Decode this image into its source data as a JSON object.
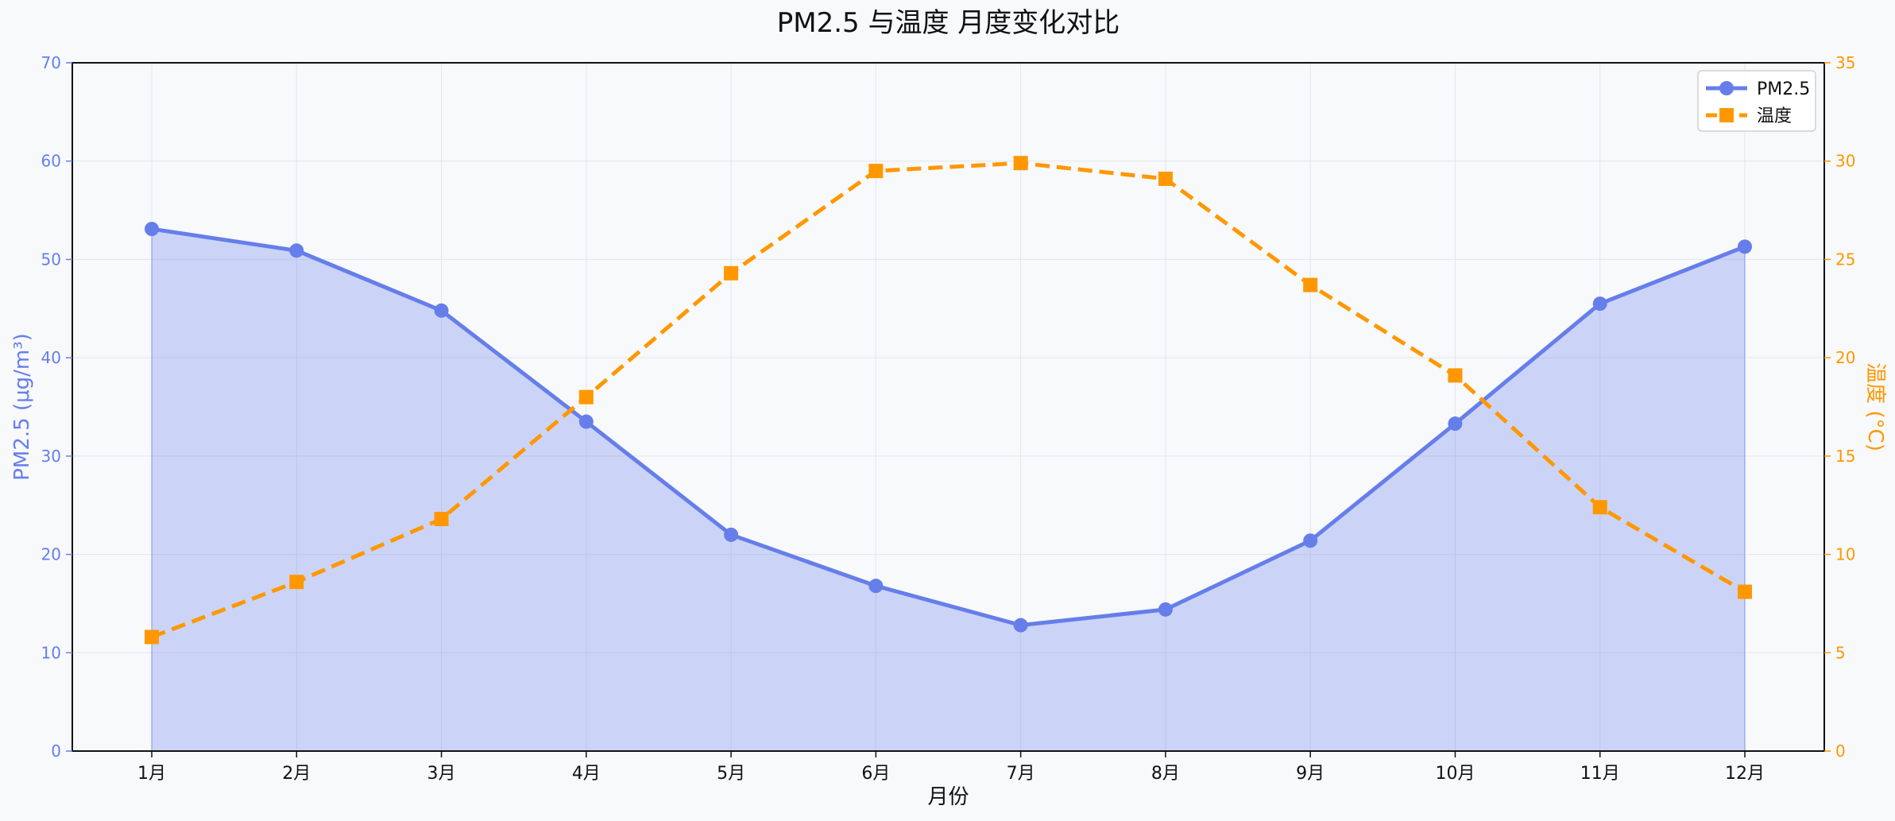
{
  "chart_data": {
    "type": "line",
    "title": "PM2.5 与温度 月度变化对比",
    "xlabel": "月份",
    "ylabel_left": "PM2.5 (μg/m³)",
    "ylabel_right": "温度 (°C)",
    "categories": [
      "1月",
      "2月",
      "3月",
      "4月",
      "5月",
      "6月",
      "7月",
      "8月",
      "9月",
      "10月",
      "11月",
      "12月"
    ],
    "ylim_left": [
      0,
      70
    ],
    "yticks_left": [
      0,
      10,
      20,
      30,
      40,
      50,
      60,
      70
    ],
    "ylim_right": [
      0,
      35
    ],
    "yticks_right": [
      0,
      5,
      10,
      15,
      20,
      25,
      30,
      35
    ],
    "grid": true,
    "legend_position": "top-right",
    "series": [
      {
        "name": "PM2.5",
        "axis": "left",
        "style": "solid-area",
        "marker": "circle",
        "color": "#667eea",
        "values": [
          53.1,
          50.9,
          44.8,
          33.5,
          22.0,
          16.8,
          12.8,
          14.4,
          21.4,
          33.3,
          45.5,
          51.3
        ]
      },
      {
        "name": "温度",
        "axis": "right",
        "style": "dashed",
        "marker": "square",
        "color": "#ff9800",
        "values": [
          5.8,
          8.6,
          11.8,
          18.0,
          24.3,
          29.5,
          29.9,
          29.1,
          23.7,
          19.1,
          12.4,
          8.1
        ]
      }
    ]
  }
}
